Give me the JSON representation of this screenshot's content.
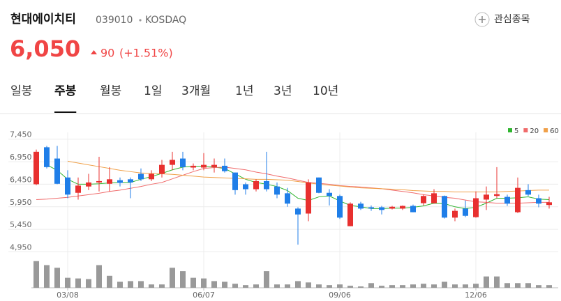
{
  "header": {
    "name": "현대에이치티",
    "code": "039010",
    "market": "KOSDAQ",
    "button": "관심종목",
    "price": "6,050",
    "change": "90",
    "change_pct": "(+1.51%)"
  },
  "tabs": [
    "일봉",
    "주봉",
    "월봉",
    "1일",
    "3개월",
    "1년",
    "3년",
    "10년"
  ],
  "selected_tab": 1,
  "chart_data": {
    "type": "candlestick",
    "categories": [
      null,
      null,
      null,
      "03/08",
      null,
      null,
      null,
      null,
      null,
      null,
      null,
      null,
      null,
      null,
      null,
      null,
      "06/07",
      null,
      null,
      null,
      null,
      null,
      null,
      null,
      null,
      null,
      null,
      null,
      null,
      "09/06",
      null,
      null,
      null,
      null,
      null,
      null,
      null,
      null,
      null,
      null,
      null,
      null,
      "12/06",
      null,
      null,
      null,
      null,
      null,
      null,
      null
    ],
    "open": [
      6450,
      7270,
      7020,
      6600,
      6260,
      6400,
      6490,
      6460,
      6540,
      6560,
      6680,
      6560,
      6680,
      6880,
      7020,
      6820,
      6820,
      6830,
      6860,
      6710,
      6450,
      6340,
      6520,
      6400,
      6250,
      5910,
      5800,
      6600,
      6260,
      6190,
      5520,
      6020,
      5940,
      5940,
      5910,
      5910,
      5970,
      6030,
      6030,
      6190,
      5710,
      5910,
      5720,
      6110,
      6190,
      6170,
      5830,
      6320,
      6140,
      5990
    ],
    "close": [
      7170,
      6830,
      6460,
      6220,
      6420,
      6490,
      6520,
      6560,
      6480,
      6490,
      6560,
      6680,
      6880,
      6990,
      6830,
      6860,
      6880,
      6880,
      6740,
      6320,
      6340,
      6520,
      6340,
      6220,
      6020,
      5780,
      6490,
      6260,
      6190,
      5710,
      6020,
      5910,
      5910,
      5880,
      5950,
      5970,
      5830,
      6190,
      6250,
      5710,
      5860,
      5750,
      6140,
      6220,
      6230,
      6020,
      6370,
      6220,
      6020,
      6050
    ],
    "high": [
      7220,
      7300,
      7300,
      6760,
      6600,
      6680,
      7060,
      6830,
      6600,
      6600,
      6800,
      6760,
      6990,
      7170,
      7170,
      6910,
      7140,
      7020,
      7020,
      6710,
      6490,
      6560,
      7170,
      6490,
      6370,
      5940,
      6560,
      6600,
      6340,
      6220,
      6050,
      6060,
      5980,
      5970,
      5970,
      5980,
      6000,
      6220,
      6340,
      6200,
      5910,
      6090,
      6290,
      6400,
      6830,
      6220,
      6600,
      6450,
      6220,
      6170
    ],
    "low": [
      6430,
      6800,
      6450,
      6140,
      6110,
      6320,
      6290,
      6290,
      6400,
      6140,
      6520,
      6520,
      6600,
      6760,
      6760,
      6760,
      6760,
      6710,
      6710,
      6220,
      6220,
      6290,
      6290,
      6140,
      5950,
      5110,
      5630,
      6250,
      5980,
      5680,
      5520,
      5880,
      5860,
      5780,
      5890,
      5880,
      5830,
      5980,
      6020,
      5690,
      5630,
      5720,
      5710,
      5880,
      6140,
      5970,
      5810,
      6190,
      5940,
      5910
    ],
    "up_color": "#e8302f",
    "down_color": "#1f7ee8",
    "ma": [
      {
        "name": "5",
        "color": "#2fb52f",
        "values": [
          null,
          6880,
          6760,
          6560,
          6450,
          6450,
          6460,
          6480,
          6490,
          6490,
          6560,
          6620,
          6690,
          6770,
          6830,
          6850,
          6850,
          6830,
          6800,
          6680,
          6560,
          6490,
          6450,
          6400,
          6310,
          6140,
          6090,
          6170,
          6190,
          6080,
          5980,
          5950,
          5910,
          5910,
          5920,
          5920,
          5940,
          5970,
          6030,
          6020,
          5950,
          5910,
          5940,
          6030,
          6140,
          6140,
          6150,
          6170,
          6120,
          6110
        ]
      },
      {
        "name": "20",
        "color": "#f06b6b",
        "values": [
          6110,
          6120,
          6140,
          6160,
          6190,
          6220,
          6250,
          6290,
          6320,
          6360,
          6400,
          6450,
          6490,
          6570,
          6650,
          6730,
          6800,
          6820,
          6830,
          6800,
          6770,
          6720,
          6680,
          6630,
          6590,
          6540,
          6490,
          6470,
          6450,
          6420,
          6400,
          6390,
          6370,
          6350,
          6320,
          6290,
          6260,
          6220,
          6190,
          6160,
          6140,
          6100,
          6060,
          6050,
          6030,
          6030,
          6030,
          6040,
          6050,
          6050
        ]
      },
      {
        "name": "60",
        "color": "#f0a048",
        "values": [
          null,
          null,
          null,
          6960,
          6920,
          6880,
          6840,
          6800,
          6760,
          6730,
          6700,
          6690,
          6680,
          6670,
          6650,
          6630,
          6610,
          6600,
          6590,
          6580,
          6570,
          6560,
          6560,
          6550,
          6540,
          6510,
          6480,
          6450,
          6430,
          6410,
          6390,
          6370,
          6360,
          6350,
          6340,
          6330,
          6310,
          6300,
          6290,
          6290,
          6280,
          6280,
          6280,
          6280,
          6280,
          6290,
          6300,
          6310,
          6320,
          6320
        ]
      }
    ],
    "volume": [
      40,
      34,
      30,
      15,
      14,
      13,
      34,
      18,
      9,
      10,
      10,
      5,
      5,
      30,
      25,
      15,
      14,
      10,
      9,
      6,
      4,
      5,
      25,
      5,
      5,
      10,
      8,
      5,
      4,
      5,
      3,
      2,
      7,
      3,
      4,
      4,
      5,
      6,
      5,
      9,
      5,
      5,
      6,
      17,
      17,
      7,
      7,
      7,
      4,
      4
    ],
    "volume_color": "#999999",
    "volume_lim": [
      0,
      45
    ],
    "ylim": [
      4850,
      7600
    ],
    "yticks": [
      {
        "value": 7450,
        "label": "7,450"
      },
      {
        "value": 6950,
        "label": "6,950"
      },
      {
        "value": 6450,
        "label": "6,450"
      },
      {
        "value": 5950,
        "label": "5,950"
      },
      {
        "value": 5450,
        "label": "5,450"
      },
      {
        "value": 4950,
        "label": "4,950"
      }
    ],
    "grid": true
  }
}
